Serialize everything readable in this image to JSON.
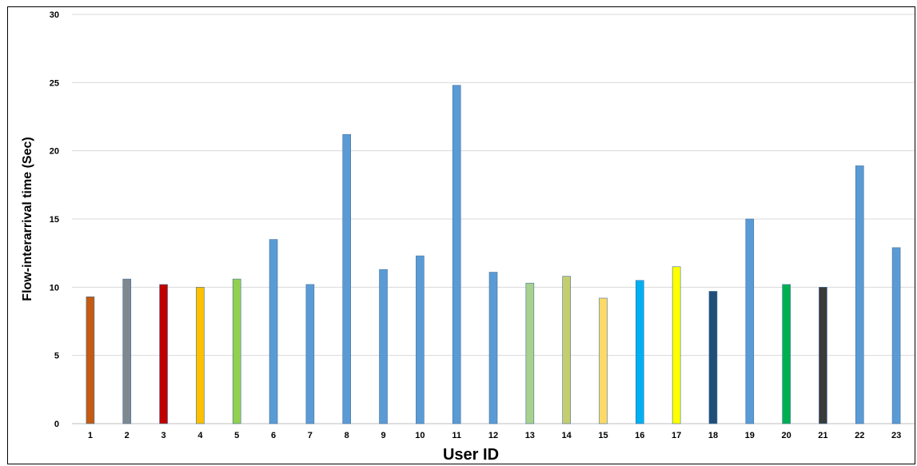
{
  "chart_data": {
    "type": "bar",
    "xlabel": "User ID",
    "ylabel": "Flow-interarrival time (Sec)",
    "ylim": [
      0,
      30
    ],
    "yticks": [
      0,
      5,
      10,
      15,
      20,
      25,
      30
    ],
    "grid": true,
    "legend": "none",
    "categories": [
      "1",
      "2",
      "3",
      "4",
      "5",
      "6",
      "7",
      "8",
      "9",
      "10",
      "11",
      "12",
      "13",
      "14",
      "15",
      "16",
      "17",
      "18",
      "19",
      "20",
      "21",
      "22",
      "23"
    ],
    "values": [
      9.3,
      10.6,
      10.2,
      10.0,
      10.6,
      13.5,
      10.2,
      21.2,
      11.3,
      12.3,
      24.8,
      11.1,
      10.3,
      10.8,
      9.2,
      10.5,
      11.5,
      9.7,
      15.0,
      10.2,
      10.0,
      18.9,
      12.9
    ],
    "colors": [
      "#C55A11",
      "#7F878F",
      "#C00000",
      "#FFC000",
      "#92D050",
      "#5B9BD5",
      "#5B9BD5",
      "#5B9BD5",
      "#5B9BD5",
      "#5B9BD5",
      "#5B9BD5",
      "#5B9BD5",
      "#A9D18E",
      "#C5CD6F",
      "#FFD966",
      "#00B0F0",
      "#FFFF00",
      "#1F4E79",
      "#5B9BD5",
      "#00B050",
      "#3A3A3A",
      "#5B9BD5",
      "#5B9BD5"
    ]
  }
}
